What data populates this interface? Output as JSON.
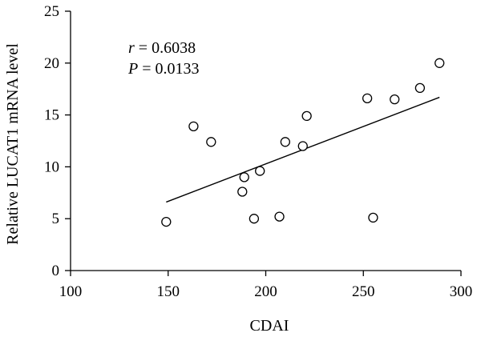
{
  "chart_data": {
    "type": "scatter",
    "xlabel": "CDAI",
    "ylabel": "Relative LUCAT1 mRNA level",
    "xlim": [
      100,
      300
    ],
    "ylim": [
      0,
      25
    ],
    "xticks": [
      100,
      150,
      200,
      250,
      300
    ],
    "yticks": [
      0,
      5,
      10,
      15,
      20,
      25
    ],
    "grid": false,
    "annotations": {
      "r_symbol": "r",
      "r_text": " = 0.6038",
      "p_symbol": "P",
      "p_text": " = 0.0133"
    },
    "points": [
      {
        "x": 149,
        "y": 4.7
      },
      {
        "x": 163,
        "y": 13.9
      },
      {
        "x": 172,
        "y": 12.4
      },
      {
        "x": 188,
        "y": 7.6
      },
      {
        "x": 189,
        "y": 9.0
      },
      {
        "x": 194,
        "y": 5.0
      },
      {
        "x": 197,
        "y": 9.6
      },
      {
        "x": 207,
        "y": 5.2
      },
      {
        "x": 210,
        "y": 12.4
      },
      {
        "x": 219,
        "y": 12.0
      },
      {
        "x": 221,
        "y": 14.9
      },
      {
        "x": 252,
        "y": 16.6
      },
      {
        "x": 255,
        "y": 5.1
      },
      {
        "x": 266,
        "y": 16.5
      },
      {
        "x": 279,
        "y": 17.6
      },
      {
        "x": 289,
        "y": 20.0
      }
    ],
    "fit_line": {
      "x": [
        149,
        289
      ],
      "y": [
        6.6,
        16.7
      ]
    }
  }
}
